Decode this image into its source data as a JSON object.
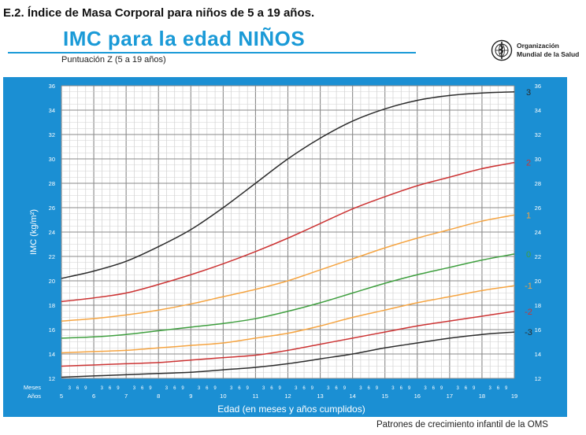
{
  "heading": "E.2. Índice de Masa Corporal para niños de 5 a 19 años.",
  "organization": {
    "line1": "Organización",
    "line2": "Mundial de la Salud",
    "logo_icon": "who-emblem-icon"
  },
  "footer": "Patrones de crecimiento infantil de la OMS",
  "colors": {
    "title": "#1a9ad7",
    "panel": "#1b8fd3",
    "plot": "#ffffff",
    "z3": "#2b2b2b",
    "z2": "#cc3333",
    "z1": "#f5a441",
    "z0": "#3f9f3f"
  },
  "chart_data": {
    "type": "line",
    "title": "IMC para la edad  NIÑOS",
    "subtitle": "Puntuación Z (5 a 19 años)",
    "xlabel": "Edad (en meses y años cumplidos)",
    "ylabel": "IMC (kg/m²)",
    "x_row_labels": {
      "months": "Meses",
      "years": "Años"
    },
    "xlim": [
      5,
      19
    ],
    "ylim": [
      12,
      36
    ],
    "x_tick_labels": [
      "5",
      "6",
      "7",
      "8",
      "9",
      "10",
      "11",
      "12",
      "13",
      "14",
      "15",
      "16",
      "17",
      "18",
      "19"
    ],
    "month_tick_labels": [
      "3",
      "6",
      "9"
    ],
    "y_tick_labels": [
      "12",
      "14",
      "16",
      "18",
      "20",
      "22",
      "24",
      "26",
      "28",
      "30",
      "32",
      "34",
      "36"
    ],
    "grid": true,
    "x": [
      5,
      6,
      7,
      8,
      9,
      10,
      11,
      12,
      13,
      14,
      15,
      16,
      17,
      18,
      19
    ],
    "series": [
      {
        "name": "3",
        "color": "#2b2b2b",
        "values": [
          20.2,
          20.8,
          21.6,
          22.8,
          24.2,
          26.0,
          28.0,
          30.0,
          31.7,
          33.1,
          34.1,
          34.8,
          35.2,
          35.4,
          35.5
        ]
      },
      {
        "name": "2",
        "color": "#cc3333",
        "values": [
          18.3,
          18.6,
          19.0,
          19.7,
          20.5,
          21.4,
          22.4,
          23.5,
          24.7,
          25.9,
          26.9,
          27.8,
          28.5,
          29.2,
          29.7
        ]
      },
      {
        "name": "1",
        "color": "#f5a441",
        "values": [
          16.7,
          16.9,
          17.2,
          17.6,
          18.1,
          18.7,
          19.3,
          20.0,
          20.9,
          21.8,
          22.7,
          23.5,
          24.2,
          24.9,
          25.4
        ]
      },
      {
        "name": "0",
        "color": "#3f9f3f",
        "values": [
          15.3,
          15.4,
          15.6,
          15.9,
          16.2,
          16.5,
          16.9,
          17.5,
          18.2,
          19.0,
          19.8,
          20.5,
          21.1,
          21.7,
          22.2
        ]
      },
      {
        "name": "-1",
        "color": "#f5a441",
        "values": [
          14.1,
          14.2,
          14.3,
          14.5,
          14.7,
          14.9,
          15.3,
          15.7,
          16.3,
          17.0,
          17.6,
          18.2,
          18.7,
          19.2,
          19.6
        ]
      },
      {
        "name": "-2",
        "color": "#cc3333",
        "values": [
          13.0,
          13.1,
          13.2,
          13.3,
          13.5,
          13.7,
          13.9,
          14.3,
          14.8,
          15.3,
          15.8,
          16.3,
          16.7,
          17.1,
          17.5
        ]
      },
      {
        "name": "-3",
        "color": "#2b2b2b",
        "values": [
          12.1,
          12.2,
          12.3,
          12.4,
          12.5,
          12.7,
          12.9,
          13.2,
          13.6,
          14.0,
          14.5,
          14.9,
          15.3,
          15.6,
          15.8
        ]
      }
    ]
  }
}
